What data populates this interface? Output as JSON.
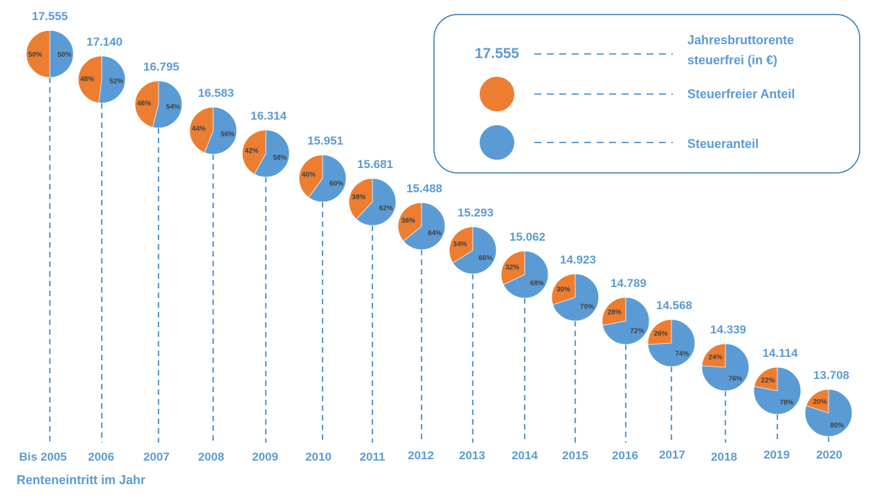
{
  "colors": {
    "orange": "#ED7D31",
    "blue": "#5B9BD5",
    "label": "#5B9BD5",
    "pct": "#404040",
    "legend_border": "#2E75B6"
  },
  "legend": {
    "sample_value": "17.555",
    "value_line1": "Jahresbruttorente",
    "value_line2": "steuerfrei (in €)",
    "orange_label": "Steuerfreier Anteil",
    "blue_label": "Steueranteil"
  },
  "xlabel": "Renteneintritt im Jahr",
  "chart_data": {
    "type": "pie",
    "xlabel": "Renteneintritt im Jahr",
    "categories": [
      "Bis 2005",
      "2006",
      "2007",
      "2008",
      "2009",
      "2010",
      "2011",
      "2012",
      "2013",
      "2014",
      "2015",
      "2016",
      "2017",
      "2018",
      "2019",
      "2020"
    ],
    "values": [
      "17.555",
      "17.140",
      "16.795",
      "16.583",
      "16.314",
      "15.951",
      "15.681",
      "15.488",
      "15.293",
      "15.062",
      "14.923",
      "14.789",
      "14.568",
      "14.339",
      "14.114",
      "13.708"
    ],
    "series": [
      {
        "name": "Steuerfreier Anteil",
        "values": [
          50,
          48,
          46,
          44,
          42,
          40,
          38,
          36,
          34,
          32,
          30,
          28,
          26,
          24,
          22,
          20
        ]
      },
      {
        "name": "Steueranteil",
        "values": [
          50,
          52,
          54,
          56,
          58,
          60,
          62,
          64,
          66,
          68,
          70,
          72,
          74,
          76,
          78,
          80
        ]
      }
    ]
  }
}
